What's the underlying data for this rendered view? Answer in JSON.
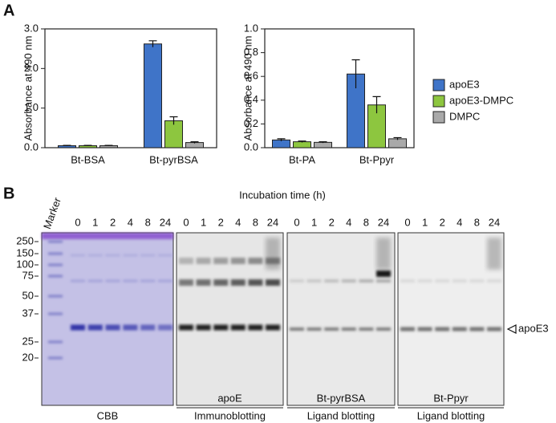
{
  "panel_labels": [
    "A",
    "B"
  ],
  "legend": [
    {
      "name": "apoE3",
      "color": "#3f74c8"
    },
    {
      "name": "apoE3-DMPC",
      "color": "#8dc63f"
    },
    {
      "name": "DMPC",
      "color": "#a9a9a9"
    }
  ],
  "chart_data": [
    {
      "type": "bar",
      "y_label": "Absorbance at 490 nm",
      "categories": [
        "Bt-BSA",
        "Bt-pyrBSA"
      ],
      "ylim": [
        0,
        3
      ],
      "yticks": [
        {
          "value": 0,
          "label": "0.0"
        },
        {
          "value": 1,
          "label": "1.0"
        },
        {
          "value": 2,
          "label": "2.0"
        },
        {
          "value": 3,
          "label": "3.0"
        }
      ],
      "series": [
        {
          "color": "#3f74c8",
          "values": [
            0.05,
            2.62
          ],
          "errors": [
            0.01,
            0.08
          ]
        },
        {
          "color": "#8dc63f",
          "values": [
            0.05,
            0.68
          ],
          "errors": [
            0.01,
            0.1
          ]
        },
        {
          "color": "#a9a9a9",
          "values": [
            0.05,
            0.13
          ],
          "errors": [
            0.01,
            0.02
          ]
        }
      ]
    },
    {
      "type": "bar",
      "y_label": "Absorbance at 490 nm",
      "categories": [
        "Bt-PA",
        "Bt-Ppyr"
      ],
      "ylim": [
        0,
        1
      ],
      "yticks": [
        {
          "value": 0,
          "label": "0.0"
        },
        0.2,
        0.4,
        0.6,
        0.8,
        {
          "value": 1,
          "label": "1.0"
        }
      ],
      "series": [
        {
          "color": "#3f74c8",
          "values": [
            0.065,
            0.62
          ],
          "errors": [
            0.01,
            0.12
          ]
        },
        {
          "color": "#8dc63f",
          "values": [
            0.05,
            0.36
          ],
          "errors": [
            0.006,
            0.07
          ]
        },
        {
          "color": "#a9a9a9",
          "values": [
            0.045,
            0.075
          ],
          "errors": [
            0.005,
            0.01
          ]
        }
      ]
    }
  ],
  "blots": {
    "time_title": "Incubation time (h)",
    "marker_label": "Marker",
    "marker_kda": [
      250,
      150,
      100,
      75,
      50,
      37,
      25,
      20
    ],
    "arrow_label": "apoE3",
    "gels": [
      {
        "label": "CBB",
        "lanes": [
          "0",
          "1",
          "2",
          "4",
          "8",
          "24"
        ]
      },
      {
        "label": "apoE",
        "method": "Immunoblotting",
        "lanes": [
          "0",
          "1",
          "2",
          "4",
          "8",
          "24"
        ]
      },
      {
        "label": "Bt-pyrBSA",
        "method": "Ligand blotting",
        "lanes": [
          "0",
          "1",
          "2",
          "4",
          "8",
          "24"
        ]
      },
      {
        "label": "Bt-Ppyr",
        "method": "Ligand blotting",
        "lanes": [
          "0",
          "1",
          "2",
          "4",
          "8",
          "24"
        ]
      }
    ]
  }
}
